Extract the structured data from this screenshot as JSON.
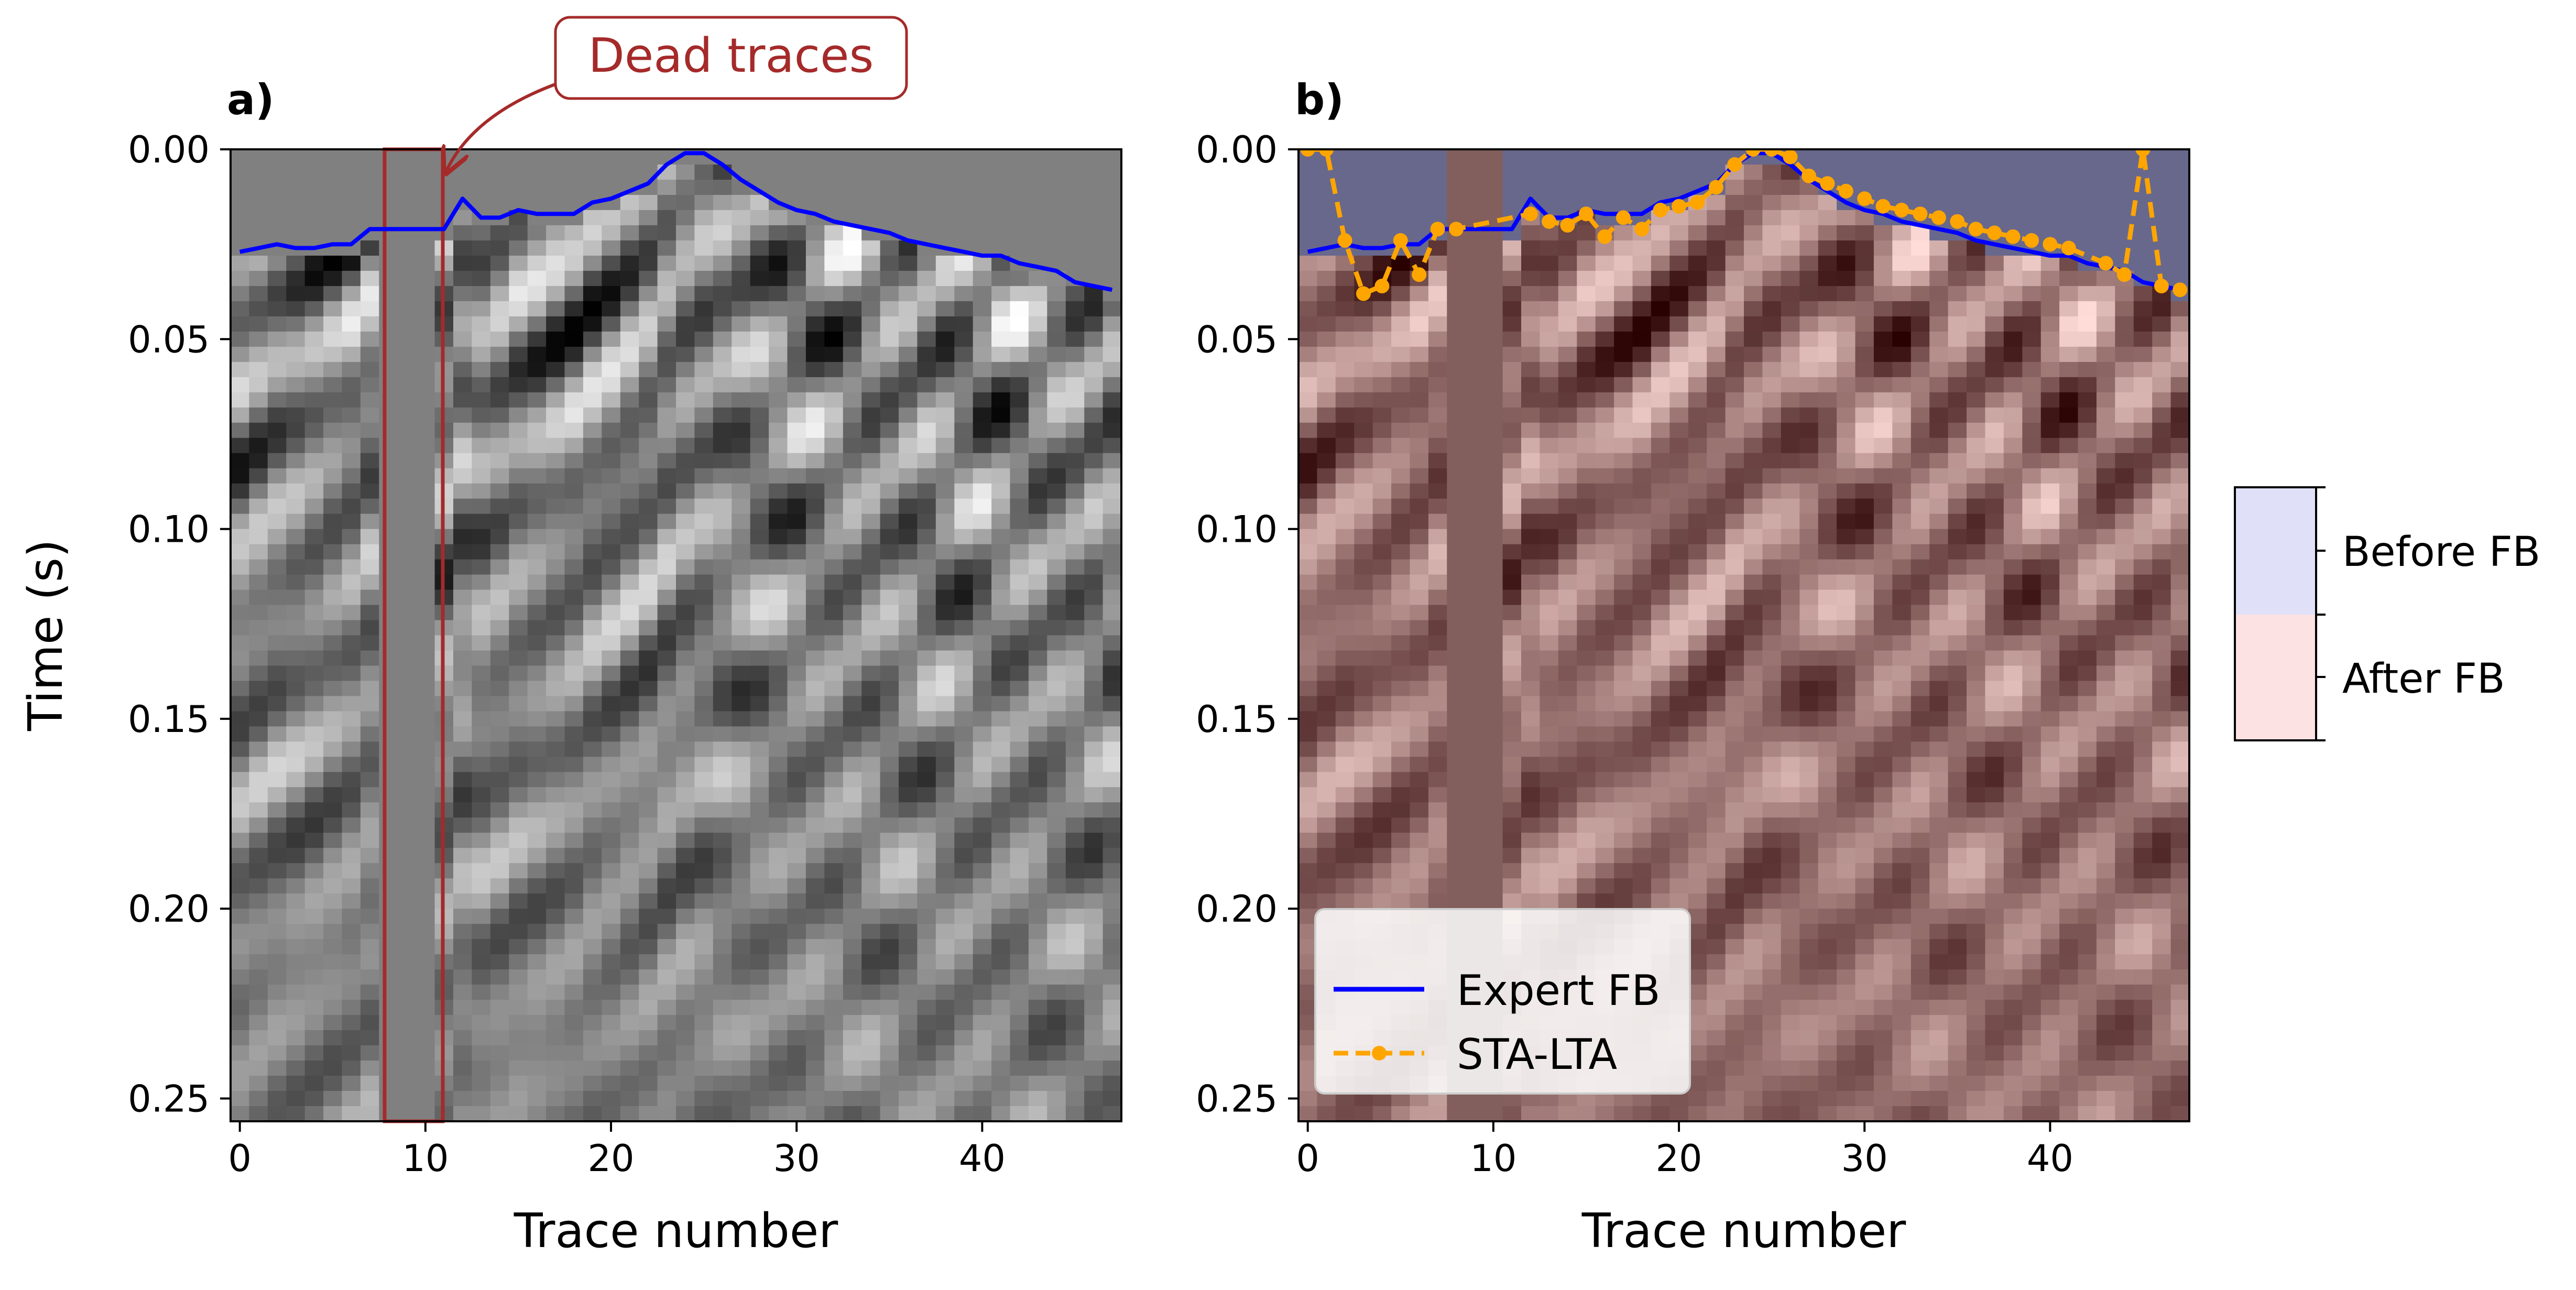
{
  "colors": {
    "expert_line": "#0000ff",
    "sta_lta": "#ffa500",
    "dead_trace_box": "#a52a2a",
    "before_fb": "#e0e0f8",
    "after_fb": "#fce2e2",
    "dead_trace_gray": "#808080"
  },
  "chart_data": [
    {
      "type": "heatmap",
      "panel_label": "a)",
      "xlabel": "Trace number",
      "ylabel": "Time (s)",
      "xlim": [
        -0.5,
        47.5
      ],
      "ylim": [
        0.256,
        0.0
      ],
      "xticks": [
        0,
        10,
        20,
        30,
        40
      ],
      "yticks": [
        0.0,
        0.05,
        0.1,
        0.15,
        0.2,
        0.25
      ],
      "ytick_labels": [
        "0.00",
        "0.05",
        "0.10",
        "0.15",
        "0.20",
        "0.25"
      ],
      "colormap": "gray",
      "dead_traces": [
        8,
        9,
        10
      ],
      "annotation": {
        "text": "Dead traces",
        "box_traces": [
          7.9,
          11.0
        ],
        "box_time": [
          0.0,
          0.256
        ]
      },
      "series": [
        {
          "name": "Expert FB",
          "x": [
            0,
            1,
            2,
            3,
            4,
            5,
            6,
            7,
            8,
            9,
            10,
            11,
            12,
            13,
            14,
            15,
            16,
            17,
            18,
            19,
            20,
            21,
            22,
            23,
            24,
            25,
            26,
            27,
            28,
            29,
            30,
            31,
            32,
            33,
            34,
            35,
            36,
            37,
            38,
            39,
            40,
            41,
            42,
            43,
            44,
            45,
            46,
            47
          ],
          "y": [
            0.027,
            0.026,
            0.025,
            0.026,
            0.026,
            0.025,
            0.025,
            0.021,
            0.021,
            0.021,
            0.021,
            0.021,
            0.013,
            0.018,
            0.018,
            0.016,
            0.017,
            0.017,
            0.017,
            0.014,
            0.013,
            0.011,
            0.009,
            0.004,
            0.001,
            0.001,
            0.004,
            0.008,
            0.011,
            0.014,
            0.016,
            0.017,
            0.019,
            0.02,
            0.021,
            0.022,
            0.024,
            0.025,
            0.026,
            0.027,
            0.028,
            0.028,
            0.03,
            0.031,
            0.032,
            0.035,
            0.036,
            0.037
          ]
        }
      ]
    },
    {
      "type": "heatmap",
      "panel_label": "b)",
      "xlabel": "Trace number",
      "ylabel": "",
      "xlim": [
        -0.5,
        47.5
      ],
      "ylim": [
        0.256,
        0.0
      ],
      "xticks": [
        0,
        10,
        20,
        30,
        40
      ],
      "yticks": [
        0.0,
        0.05,
        0.1,
        0.15,
        0.2,
        0.25
      ],
      "ytick_labels": [
        "0.00",
        "0.05",
        "0.10",
        "0.15",
        "0.20",
        "0.25"
      ],
      "colormap": "pink overlay",
      "dead_traces": [
        8,
        9,
        10
      ],
      "legend": {
        "position": "lower-left",
        "entries": [
          "Expert FB",
          "STA-LTA"
        ]
      },
      "mask_colorbar": {
        "labels": [
          "Before FB",
          "After FB"
        ]
      },
      "series": [
        {
          "name": "Expert FB",
          "x": [
            0,
            1,
            2,
            3,
            4,
            5,
            6,
            7,
            8,
            9,
            10,
            11,
            12,
            13,
            14,
            15,
            16,
            17,
            18,
            19,
            20,
            21,
            22,
            23,
            24,
            25,
            26,
            27,
            28,
            29,
            30,
            31,
            32,
            33,
            34,
            35,
            36,
            37,
            38,
            39,
            40,
            41,
            42,
            43,
            44,
            45,
            46,
            47
          ],
          "y": [
            0.027,
            0.026,
            0.025,
            0.026,
            0.026,
            0.025,
            0.025,
            0.021,
            0.021,
            0.021,
            0.021,
            0.021,
            0.013,
            0.018,
            0.018,
            0.016,
            0.017,
            0.017,
            0.017,
            0.014,
            0.013,
            0.011,
            0.009,
            0.004,
            0.001,
            0.001,
            0.004,
            0.008,
            0.011,
            0.014,
            0.016,
            0.017,
            0.019,
            0.02,
            0.021,
            0.022,
            0.024,
            0.025,
            0.026,
            0.027,
            0.028,
            0.028,
            0.03,
            0.031,
            0.032,
            0.035,
            0.036,
            0.037
          ]
        },
        {
          "name": "STA-LTA",
          "x": [
            0,
            1,
            2,
            3,
            4,
            5,
            6,
            7,
            8,
            12,
            13,
            14,
            15,
            16,
            17,
            18,
            19,
            20,
            21,
            22,
            23,
            24,
            25,
            26,
            27,
            28,
            29,
            30,
            31,
            32,
            33,
            34,
            35,
            36,
            37,
            38,
            39,
            40,
            41,
            43,
            44,
            45,
            46,
            47
          ],
          "y": [
            0.0,
            0.0,
            0.024,
            0.038,
            0.036,
            0.024,
            0.033,
            0.021,
            0.021,
            0.017,
            0.019,
            0.02,
            0.017,
            0.023,
            0.018,
            0.021,
            0.016,
            0.015,
            0.014,
            0.01,
            0.004,
            0.0,
            0.0,
            0.002,
            0.007,
            0.009,
            0.011,
            0.013,
            0.015,
            0.016,
            0.017,
            0.018,
            0.019,
            0.021,
            0.022,
            0.023,
            0.024,
            0.025,
            0.026,
            0.03,
            0.033,
            0.0,
            0.036,
            0.037
          ]
        }
      ]
    }
  ]
}
